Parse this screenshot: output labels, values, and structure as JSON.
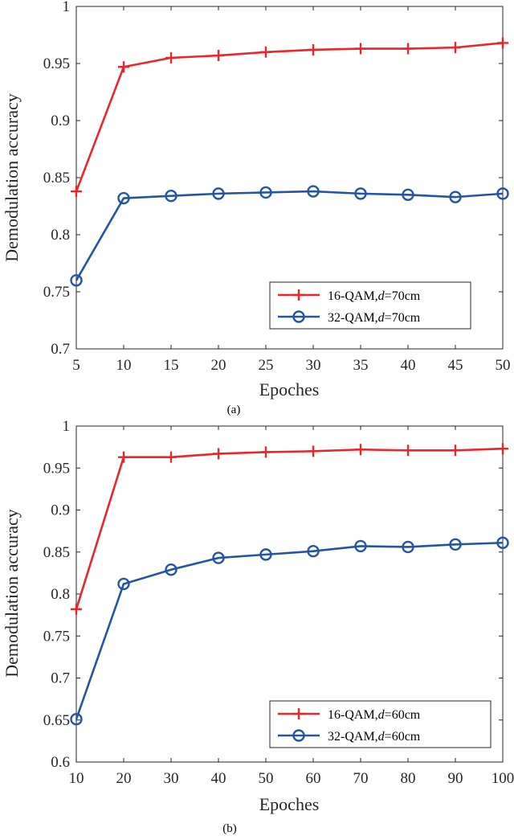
{
  "chart_data": [
    {
      "type": "line",
      "caption": "(a)",
      "xlabel": "Epoches",
      "ylabel": "Demodulation accuracy",
      "xlim": [
        5,
        50
      ],
      "ylim": [
        0.7,
        1
      ],
      "xticks": [
        "5",
        "10",
        "15",
        "20",
        "25",
        "30",
        "35",
        "40",
        "45",
        "50"
      ],
      "yticks": [
        "0.7",
        "0.75",
        "0.8",
        "0.85",
        "0.9",
        "0.95",
        "1"
      ],
      "grid": false,
      "legend_position": "bottom-right",
      "x": [
        5,
        10,
        15,
        20,
        25,
        30,
        35,
        40,
        45,
        50
      ],
      "series": [
        {
          "name": "16-QAM,",
          "name_italic": "d",
          "name_suffix": "=70cm",
          "color": "#e8262b",
          "marker": "plus",
          "values": [
            0.838,
            0.947,
            0.955,
            0.957,
            0.96,
            0.962,
            0.963,
            0.963,
            0.964,
            0.968
          ]
        },
        {
          "name": "32-QAM,",
          "name_italic": "d",
          "name_suffix": "=70cm",
          "color": "#2454a6",
          "marker": "circle",
          "values": [
            0.76,
            0.832,
            0.834,
            0.836,
            0.837,
            0.838,
            0.836,
            0.835,
            0.833,
            0.836
          ]
        }
      ]
    },
    {
      "type": "line",
      "caption": "(b)",
      "xlabel": "Epoches",
      "ylabel": "Demodulation accuracy",
      "xlim": [
        10,
        100
      ],
      "ylim": [
        0.6,
        1
      ],
      "xticks": [
        "10",
        "20",
        "30",
        "40",
        "50",
        "60",
        "70",
        "80",
        "90",
        "100"
      ],
      "yticks": [
        "0.6",
        "0.65",
        "0.7",
        "0.75",
        "0.8",
        "0.85",
        "0.9",
        "0.95",
        "1"
      ],
      "grid": false,
      "legend_position": "bottom-right",
      "x": [
        10,
        20,
        30,
        40,
        50,
        60,
        70,
        80,
        90,
        100
      ],
      "series": [
        {
          "name": "16-QAM,",
          "name_italic": "d",
          "name_suffix": "=60cm",
          "color": "#e8262b",
          "marker": "plus",
          "values": [
            0.782,
            0.963,
            0.963,
            0.967,
            0.969,
            0.97,
            0.972,
            0.971,
            0.971,
            0.973
          ]
        },
        {
          "name": "32-QAM,",
          "name_italic": "d",
          "name_suffix": "=60cm",
          "color": "#2454a6",
          "marker": "circle",
          "values": [
            0.651,
            0.812,
            0.829,
            0.843,
            0.847,
            0.851,
            0.857,
            0.856,
            0.859,
            0.861
          ]
        }
      ]
    }
  ]
}
